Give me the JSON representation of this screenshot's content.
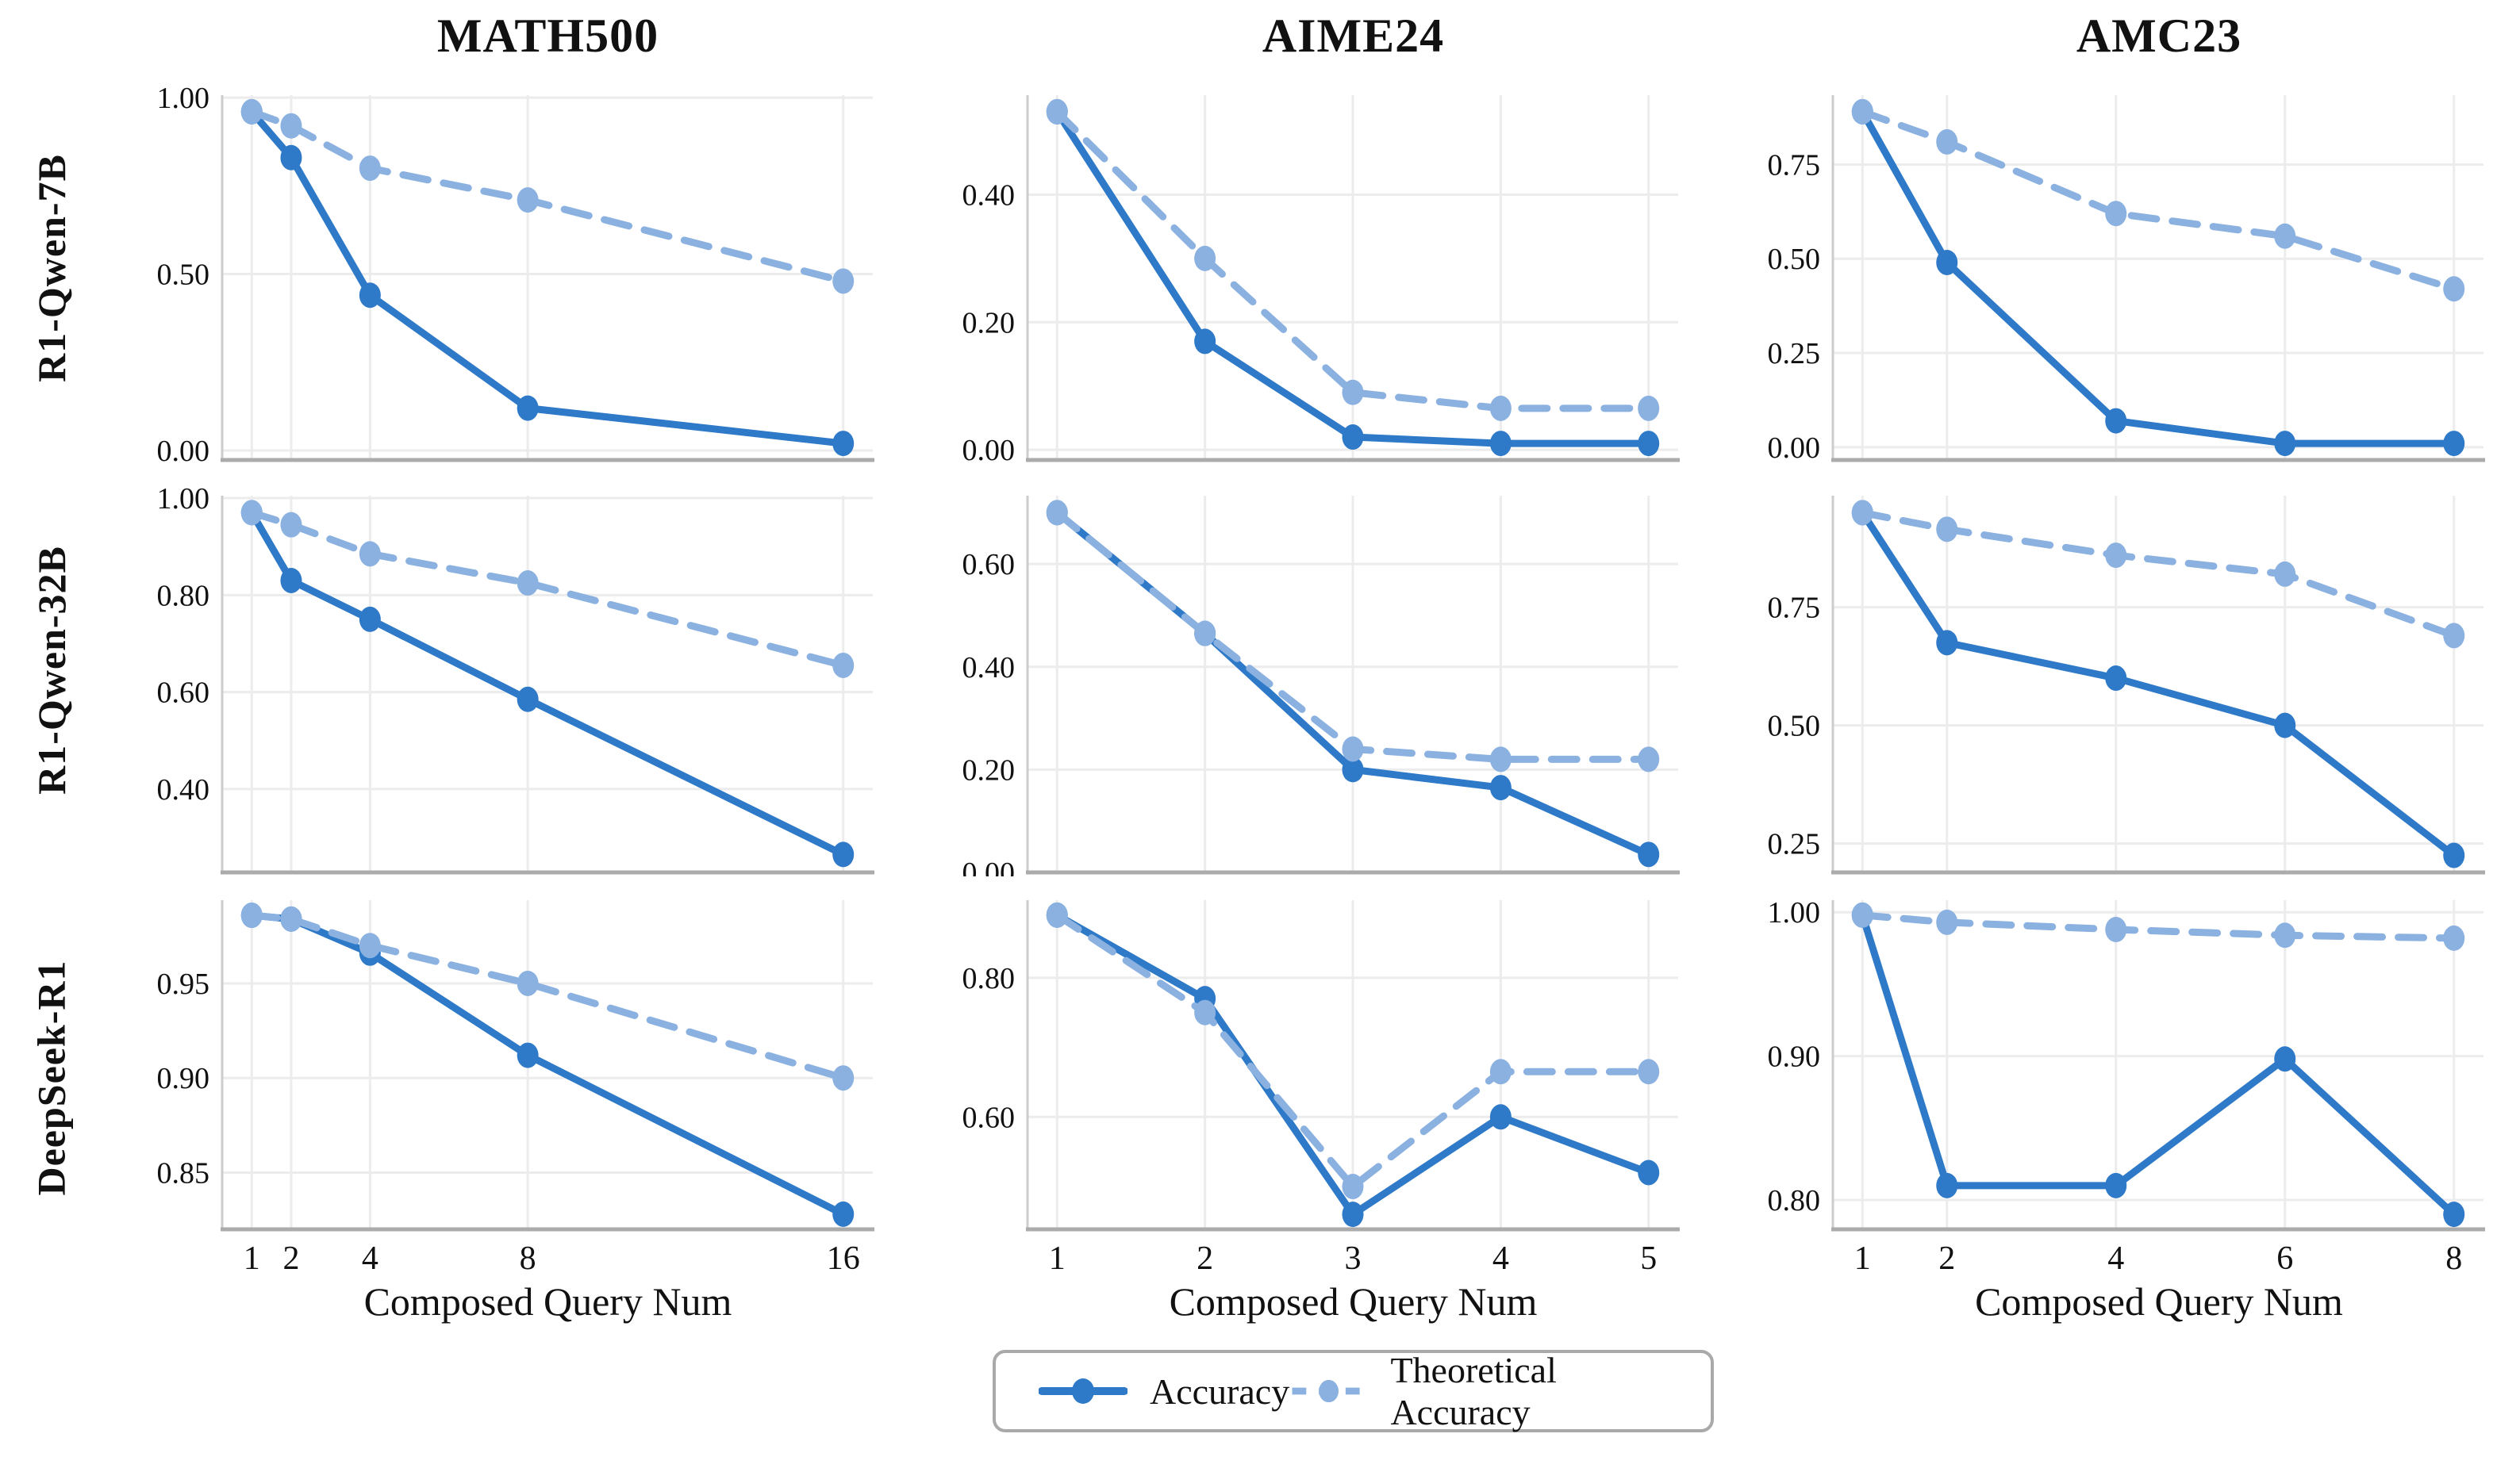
{
  "figure": {
    "columns": [
      "MATH500",
      "AIME24",
      "AMC23"
    ],
    "rows": [
      "R1-Qwen-7B",
      "R1-Qwen-32B",
      "DeepSeek-R1"
    ],
    "xlabel": "Composed Query Num",
    "legend": [
      {
        "label": "Accuracy",
        "style": "solid"
      },
      {
        "label": "Theoretical Accuracy",
        "style": "dashed"
      }
    ]
  },
  "colors": {
    "accuracy": "#2e79c8",
    "theoretical": "#8bb1e0",
    "grid": "#ececec",
    "spine_left": "#cccccc",
    "spine_bottom": "#ababab",
    "text": "#111111",
    "legend_border": "#a9a9a9"
  },
  "chart_data": [
    {
      "type": "line",
      "model": "R1-Qwen-7B",
      "benchmark": "MATH500",
      "x": [
        1,
        2,
        4,
        8,
        16
      ],
      "x_ticks": [
        1,
        2,
        4,
        8,
        16
      ],
      "y_ticks": [
        0.0,
        0.5,
        1.0
      ],
      "xlim": [
        0.25,
        16.75
      ],
      "ylim": [
        -0.027,
        1.007
      ],
      "show_x_tick_labels": false,
      "series": [
        {
          "name": "Accuracy",
          "values": [
            0.96,
            0.83,
            0.44,
            0.12,
            0.02
          ]
        },
        {
          "name": "Theoretical Accuracy",
          "values": [
            0.96,
            0.92,
            0.8,
            0.71,
            0.48
          ]
        }
      ]
    },
    {
      "type": "line",
      "model": "R1-Qwen-7B",
      "benchmark": "AIME24",
      "x": [
        1,
        2,
        3,
        4,
        5
      ],
      "x_ticks": [
        1,
        2,
        3,
        4,
        5
      ],
      "y_ticks": [
        0.0,
        0.2,
        0.4
      ],
      "xlim": [
        0.8,
        5.2
      ],
      "ylim": [
        -0.016,
        0.556
      ],
      "show_x_tick_labels": false,
      "series": [
        {
          "name": "Accuracy",
          "values": [
            0.53,
            0.17,
            0.02,
            0.01,
            0.01
          ]
        },
        {
          "name": "Theoretical Accuracy",
          "values": [
            0.53,
            0.3,
            0.09,
            0.065,
            0.065
          ]
        }
      ]
    },
    {
      "type": "line",
      "model": "R1-Qwen-7B",
      "benchmark": "AMC23",
      "x": [
        1,
        2,
        4,
        6,
        8
      ],
      "x_ticks": [
        1,
        2,
        4,
        6,
        8
      ],
      "y_ticks": [
        0.0,
        0.25,
        0.5,
        0.75
      ],
      "xlim": [
        0.65,
        8.35
      ],
      "ylim": [
        -0.034,
        0.934
      ],
      "show_x_tick_labels": false,
      "series": [
        {
          "name": "Accuracy",
          "values": [
            0.89,
            0.49,
            0.07,
            0.01,
            0.01
          ]
        },
        {
          "name": "Theoretical Accuracy",
          "values": [
            0.89,
            0.81,
            0.62,
            0.56,
            0.42
          ]
        }
      ]
    },
    {
      "type": "line",
      "model": "R1-Qwen-32B",
      "benchmark": "MATH500",
      "x": [
        1,
        2,
        4,
        8,
        16
      ],
      "x_ticks": [
        1,
        2,
        4,
        8,
        16
      ],
      "y_ticks": [
        0.4,
        0.6,
        0.8,
        1.0
      ],
      "xlim": [
        0.25,
        16.75
      ],
      "ylim": [
        0.228,
        1.005
      ],
      "show_x_tick_labels": false,
      "series": [
        {
          "name": "Accuracy",
          "values": [
            0.97,
            0.83,
            0.75,
            0.585,
            0.265
          ]
        },
        {
          "name": "Theoretical Accuracy",
          "values": [
            0.97,
            0.945,
            0.885,
            0.825,
            0.655
          ]
        }
      ]
    },
    {
      "type": "line",
      "model": "R1-Qwen-32B",
      "benchmark": "AIME24",
      "x": [
        1,
        2,
        3,
        4,
        5
      ],
      "x_ticks": [
        1,
        2,
        3,
        4,
        5
      ],
      "y_ticks": [
        0.0,
        0.2,
        0.4,
        0.6
      ],
      "xlim": [
        0.8,
        5.2
      ],
      "ylim": [
        0.0,
        0.733
      ],
      "show_x_tick_labels": false,
      "series": [
        {
          "name": "Accuracy",
          "values": [
            0.7,
            0.465,
            0.2,
            0.165,
            0.035
          ]
        },
        {
          "name": "Theoretical Accuracy",
          "values": [
            0.7,
            0.465,
            0.24,
            0.22,
            0.22
          ]
        }
      ]
    },
    {
      "type": "line",
      "model": "R1-Qwen-32B",
      "benchmark": "AMC23",
      "x": [
        1,
        2,
        4,
        6,
        8
      ],
      "x_ticks": [
        1,
        2,
        4,
        6,
        8
      ],
      "y_ticks": [
        0.25,
        0.5,
        0.75
      ],
      "xlim": [
        0.65,
        8.35
      ],
      "ylim": [
        0.189,
        0.986
      ],
      "show_x_tick_labels": false,
      "series": [
        {
          "name": "Accuracy",
          "values": [
            0.95,
            0.675,
            0.6,
            0.5,
            0.225
          ]
        },
        {
          "name": "Theoretical Accuracy",
          "values": [
            0.95,
            0.915,
            0.86,
            0.82,
            0.69
          ]
        }
      ]
    },
    {
      "type": "line",
      "model": "DeepSeek-R1",
      "benchmark": "MATH500",
      "x": [
        1,
        2,
        4,
        8,
        16
      ],
      "x_ticks": [
        1,
        2,
        4,
        8,
        16
      ],
      "y_ticks": [
        0.85,
        0.9,
        0.95
      ],
      "xlim": [
        0.25,
        16.75
      ],
      "ylim": [
        0.82,
        0.994
      ],
      "show_x_tick_labels": true,
      "series": [
        {
          "name": "Accuracy",
          "values": [
            0.986,
            0.984,
            0.966,
            0.912,
            0.828
          ]
        },
        {
          "name": "Theoretical Accuracy",
          "values": [
            0.986,
            0.984,
            0.97,
            0.95,
            0.9
          ]
        }
      ]
    },
    {
      "type": "line",
      "model": "DeepSeek-R1",
      "benchmark": "AIME24",
      "x": [
        1,
        2,
        3,
        4,
        5
      ],
      "x_ticks": [
        1,
        2,
        3,
        4,
        5
      ],
      "y_ticks": [
        0.6,
        0.8
      ],
      "xlim": [
        0.8,
        5.2
      ],
      "ylim": [
        0.4385,
        0.9115
      ],
      "show_x_tick_labels": true,
      "series": [
        {
          "name": "Accuracy",
          "values": [
            0.89,
            0.77,
            0.46,
            0.6,
            0.52
          ]
        },
        {
          "name": "Theoretical Accuracy",
          "values": [
            0.89,
            0.75,
            0.5,
            0.665,
            0.665
          ]
        }
      ]
    },
    {
      "type": "line",
      "model": "DeepSeek-R1",
      "benchmark": "AMC23",
      "x": [
        1,
        2,
        4,
        6,
        8
      ],
      "x_ticks": [
        1,
        2,
        4,
        6,
        8
      ],
      "y_ticks": [
        0.8,
        0.9,
        1.0
      ],
      "xlim": [
        0.65,
        8.35
      ],
      "ylim": [
        0.7796,
        1.0084
      ],
      "show_x_tick_labels": true,
      "series": [
        {
          "name": "Accuracy",
          "values": [
            0.998,
            0.81,
            0.81,
            0.898,
            0.79
          ]
        },
        {
          "name": "Theoretical Accuracy",
          "values": [
            0.998,
            0.993,
            0.988,
            0.984,
            0.982
          ]
        }
      ]
    }
  ]
}
